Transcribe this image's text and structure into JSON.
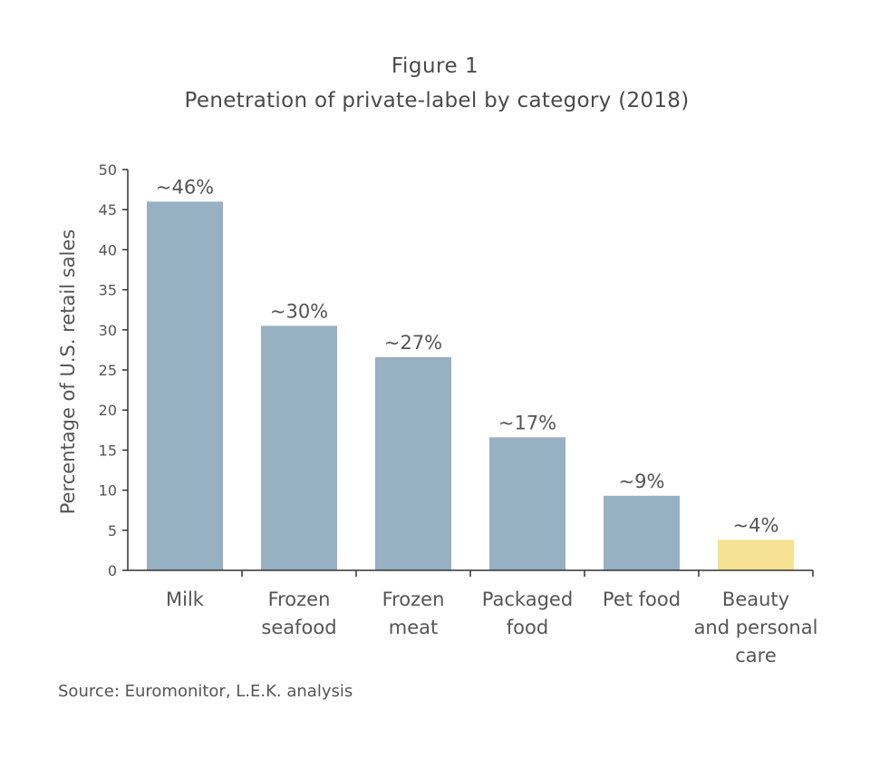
{
  "figure_label": "Figure 1",
  "title": "Penetration of private-label by category (2018)",
  "source": "Source: Euromonitor, L.E.K. analysis",
  "chart_data": {
    "type": "bar",
    "title": "Penetration of private-label by category (2018)",
    "xlabel": "",
    "ylabel": "Percentage of U.S. retail sales",
    "ylim": [
      0,
      50
    ],
    "yticks": [
      0,
      5,
      10,
      15,
      20,
      25,
      30,
      35,
      40,
      45,
      50
    ],
    "grid": false,
    "categories": [
      [
        "Milk"
      ],
      [
        "Frozen",
        "seafood"
      ],
      [
        "Frozen",
        "meat"
      ],
      [
        "Packaged",
        "food"
      ],
      [
        "Pet food"
      ],
      [
        "Beauty",
        "and personal",
        "care"
      ]
    ],
    "values": [
      46,
      30.5,
      26.6,
      16.6,
      9.3,
      3.8
    ],
    "data_labels": [
      "~46%",
      "~30%",
      "~27%",
      "~17%",
      "~9%",
      "~4%"
    ],
    "colors": [
      "#97b0c2",
      "#97b0c2",
      "#97b0c2",
      "#97b0c2",
      "#97b0c2",
      "#f6e292"
    ],
    "axis_color": "#333333"
  }
}
